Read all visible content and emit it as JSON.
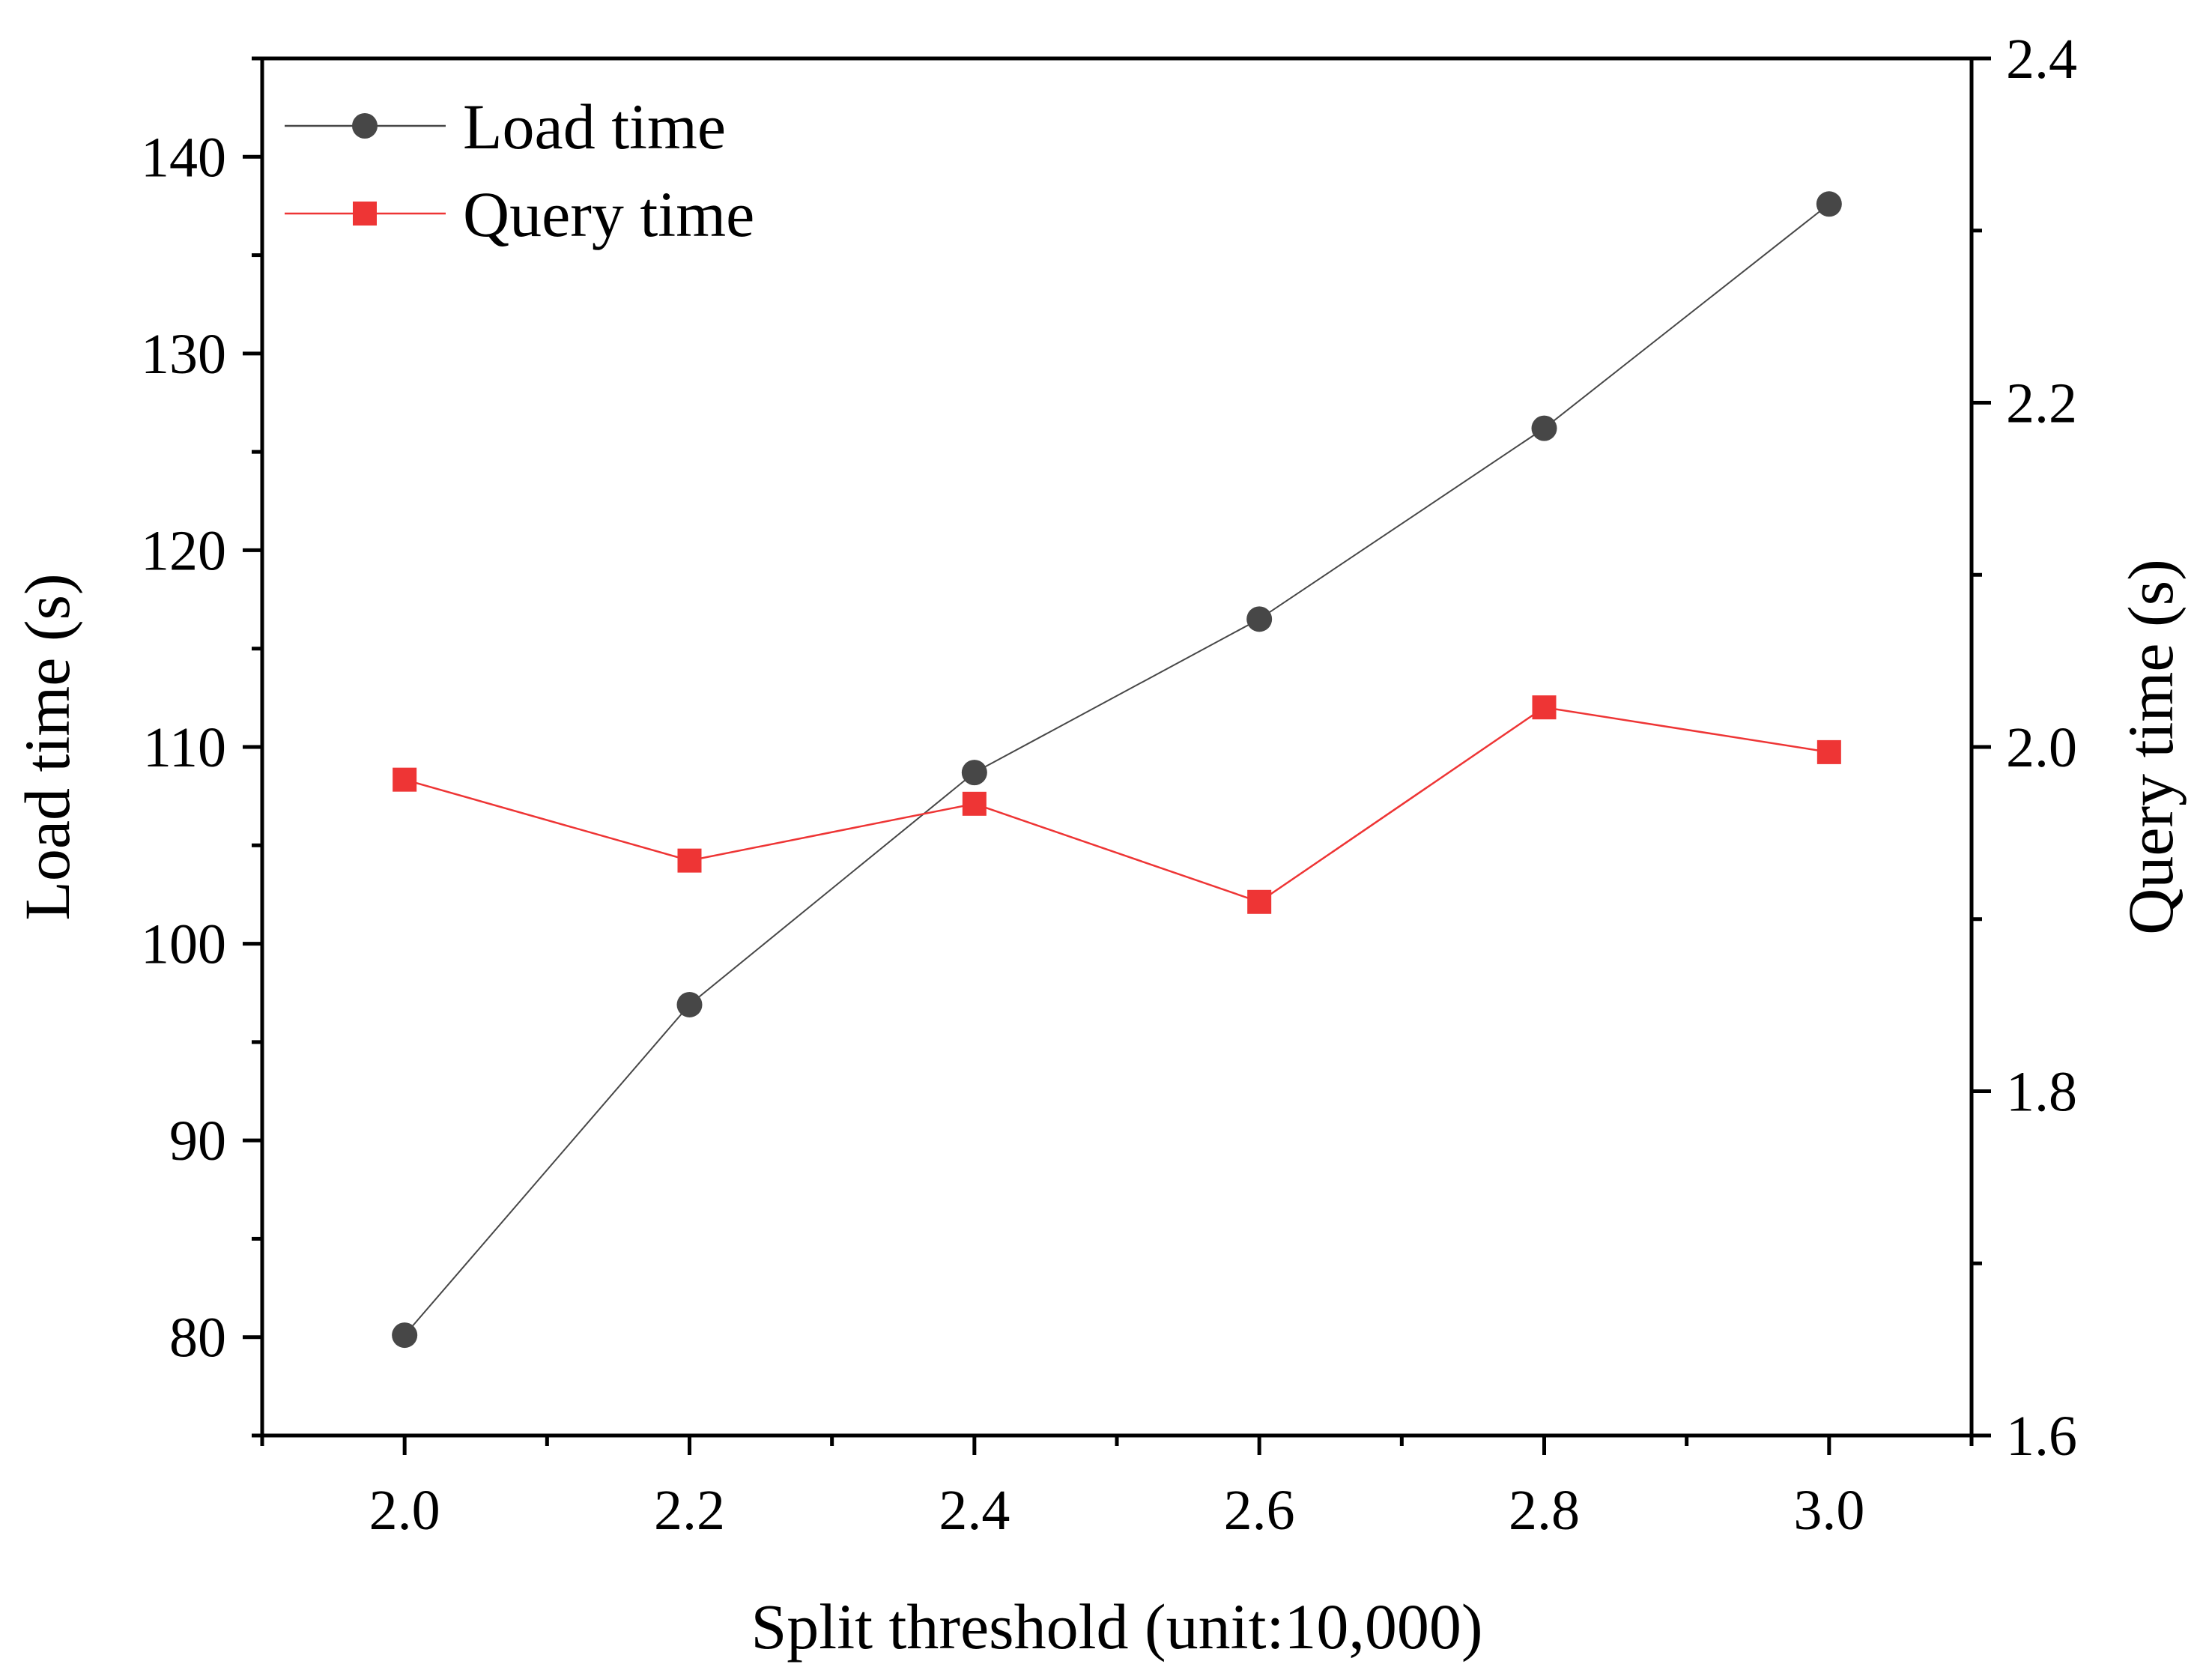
{
  "chart_data": {
    "type": "line",
    "title": "",
    "xlabel": "Split threshold (unit:10,000)",
    "ylabel": "Load time (s)",
    "ylabel_right": "Query time (s)",
    "xlim": [
      1.9,
      3.1
    ],
    "ylim_left": [
      75,
      145
    ],
    "ylim_right": [
      1.6,
      2.4
    ],
    "x": [
      2.0,
      2.2,
      2.4,
      2.6,
      2.8,
      3.0
    ],
    "x_ticks": [
      "2.0",
      "2.2",
      "2.4",
      "2.6",
      "2.8",
      "3.0"
    ],
    "y_left_ticks": [
      "80",
      "90",
      "100",
      "110",
      "120",
      "130",
      "140"
    ],
    "y_right_ticks": [
      "1.6",
      "1.8",
      "2.0",
      "2.2",
      "2.4"
    ],
    "grid": false,
    "legend_position": "top-left",
    "series": [
      {
        "name": "Load time",
        "axis": "left",
        "marker": "circle",
        "color": "#474747",
        "values": [
          80.1,
          96.9,
          108.7,
          116.5,
          126.2,
          137.6
        ]
      },
      {
        "name": "Query time",
        "axis": "right",
        "marker": "square",
        "color": "#ee3535",
        "values": [
          1.981,
          1.934,
          1.967,
          1.91,
          2.023,
          1.997
        ]
      }
    ]
  }
}
